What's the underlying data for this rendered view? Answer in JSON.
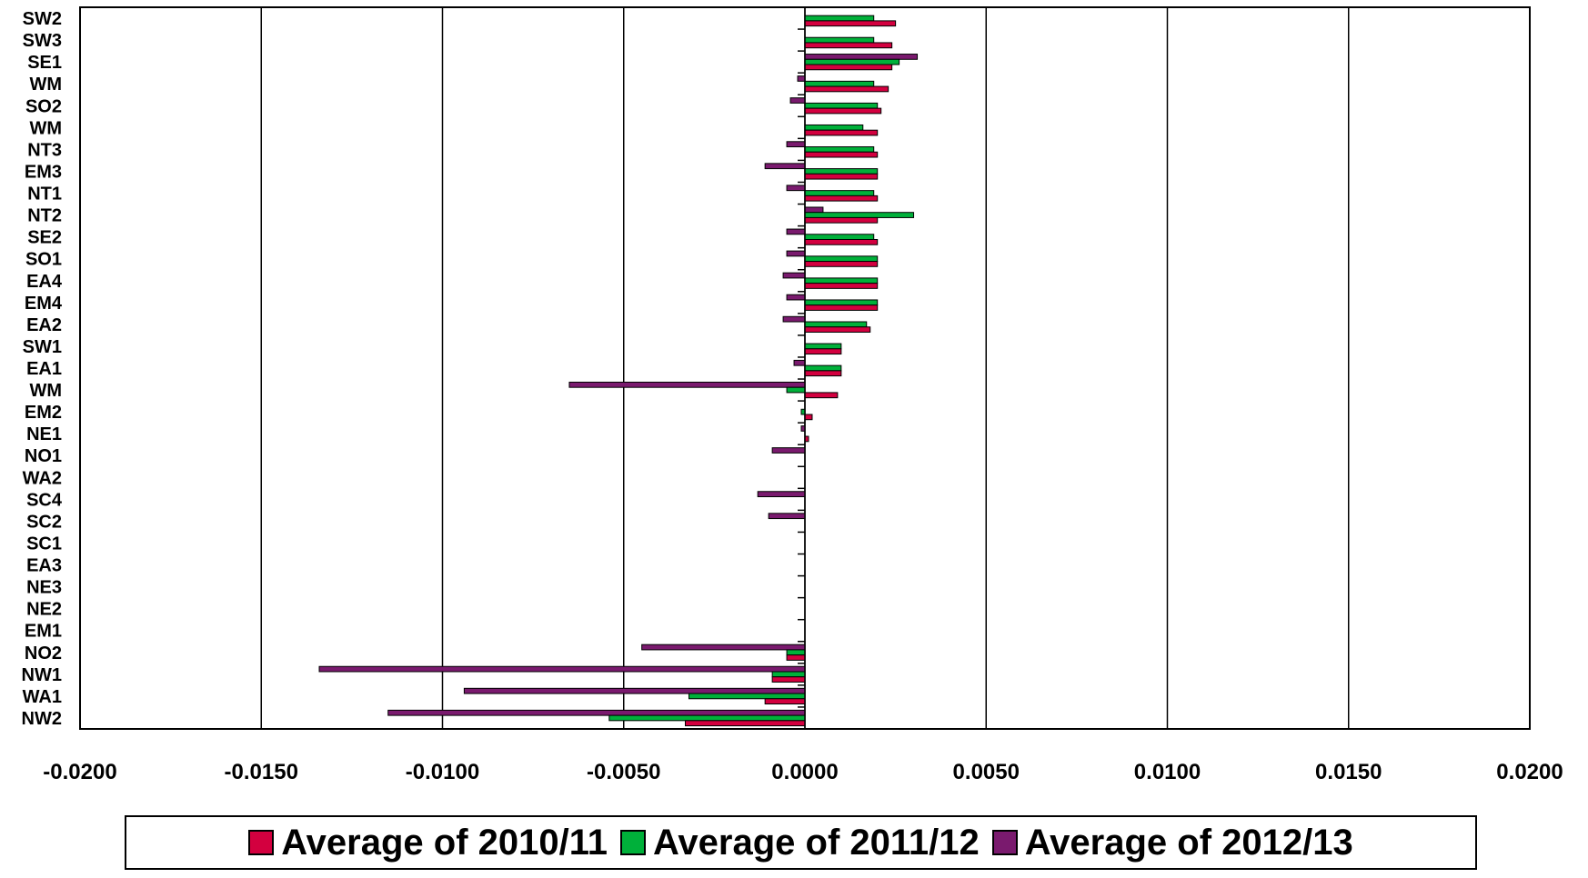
{
  "chart_data": {
    "type": "bar",
    "orientation": "horizontal",
    "categories": [
      "SW2",
      "SW3",
      "SE1",
      "WM",
      "SO2",
      "WM",
      "NT3",
      "EM3",
      "NT1",
      "NT2",
      "SE2",
      "SO1",
      "EA4",
      "EM4",
      "EA2",
      "SW1",
      "EA1",
      "WM",
      "EM2",
      "NE1",
      "NO1",
      "WA2",
      "SC4",
      "SC2",
      "SC1",
      "EA3",
      "NE3",
      "NE2",
      "EM1",
      "NO2",
      "NW1",
      "WA1",
      "NW2"
    ],
    "series": [
      {
        "name": "Average of 2010/11",
        "color": "#d3003f",
        "values": [
          0.0025,
          0.0024,
          0.0024,
          0.0023,
          0.0021,
          0.002,
          0.002,
          0.002,
          0.002,
          0.002,
          0.002,
          0.002,
          0.002,
          0.002,
          0.0018,
          0.001,
          0.001,
          0.0009,
          0.0002,
          0.0001,
          0,
          0,
          0,
          0,
          0,
          0,
          0,
          0,
          0,
          -0.0005,
          -0.0009,
          -0.0011,
          -0.0033
        ]
      },
      {
        "name": "Average of 2011/12",
        "color": "#00b03a",
        "values": [
          0.0019,
          0.0019,
          0.0026,
          0.0019,
          0.002,
          0.0016,
          0.0019,
          0.002,
          0.0019,
          0.003,
          0.0019,
          0.002,
          0.002,
          0.002,
          0.0017,
          0.001,
          0.001,
          -0.0005,
          -0.0001,
          0,
          0,
          0,
          0,
          0,
          0,
          0,
          0,
          0,
          0,
          -0.0005,
          -0.0009,
          -0.0032,
          -0.0054
        ]
      },
      {
        "name": "Average of 2012/13",
        "color": "#7a1a6e",
        "values": [
          0,
          0,
          0.0031,
          -0.0002,
          -0.0004,
          0,
          -0.0005,
          -0.0011,
          -0.0005,
          0.0005,
          -0.0005,
          -0.0005,
          -0.0006,
          -0.0005,
          -0.0006,
          0,
          -0.0003,
          -0.0065,
          0,
          -0.0001,
          -0.0009,
          0,
          -0.0013,
          -0.001,
          0,
          0,
          0,
          0,
          0,
          -0.0045,
          -0.0134,
          -0.0094,
          -0.0115
        ]
      }
    ],
    "xlim": [
      -0.02,
      0.02
    ],
    "xticks": [
      "-0.0200",
      "-0.0150",
      "-0.0100",
      "-0.0050",
      "0.0000",
      "0.0050",
      "0.0100",
      "0.0150",
      "0.0200"
    ],
    "xtick_values": [
      -0.02,
      -0.015,
      -0.01,
      -0.005,
      0,
      0.005,
      0.01,
      0.015,
      0.02
    ],
    "grid": "vertical major gridlines",
    "legend_position": "bottom"
  },
  "legend": {
    "items": [
      {
        "label": "Average of 2010/11",
        "color": "#d3003f"
      },
      {
        "label": "Average of 2011/12",
        "color": "#00b03a"
      },
      {
        "label": "Average of 2012/13",
        "color": "#7a1a6e"
      }
    ]
  }
}
